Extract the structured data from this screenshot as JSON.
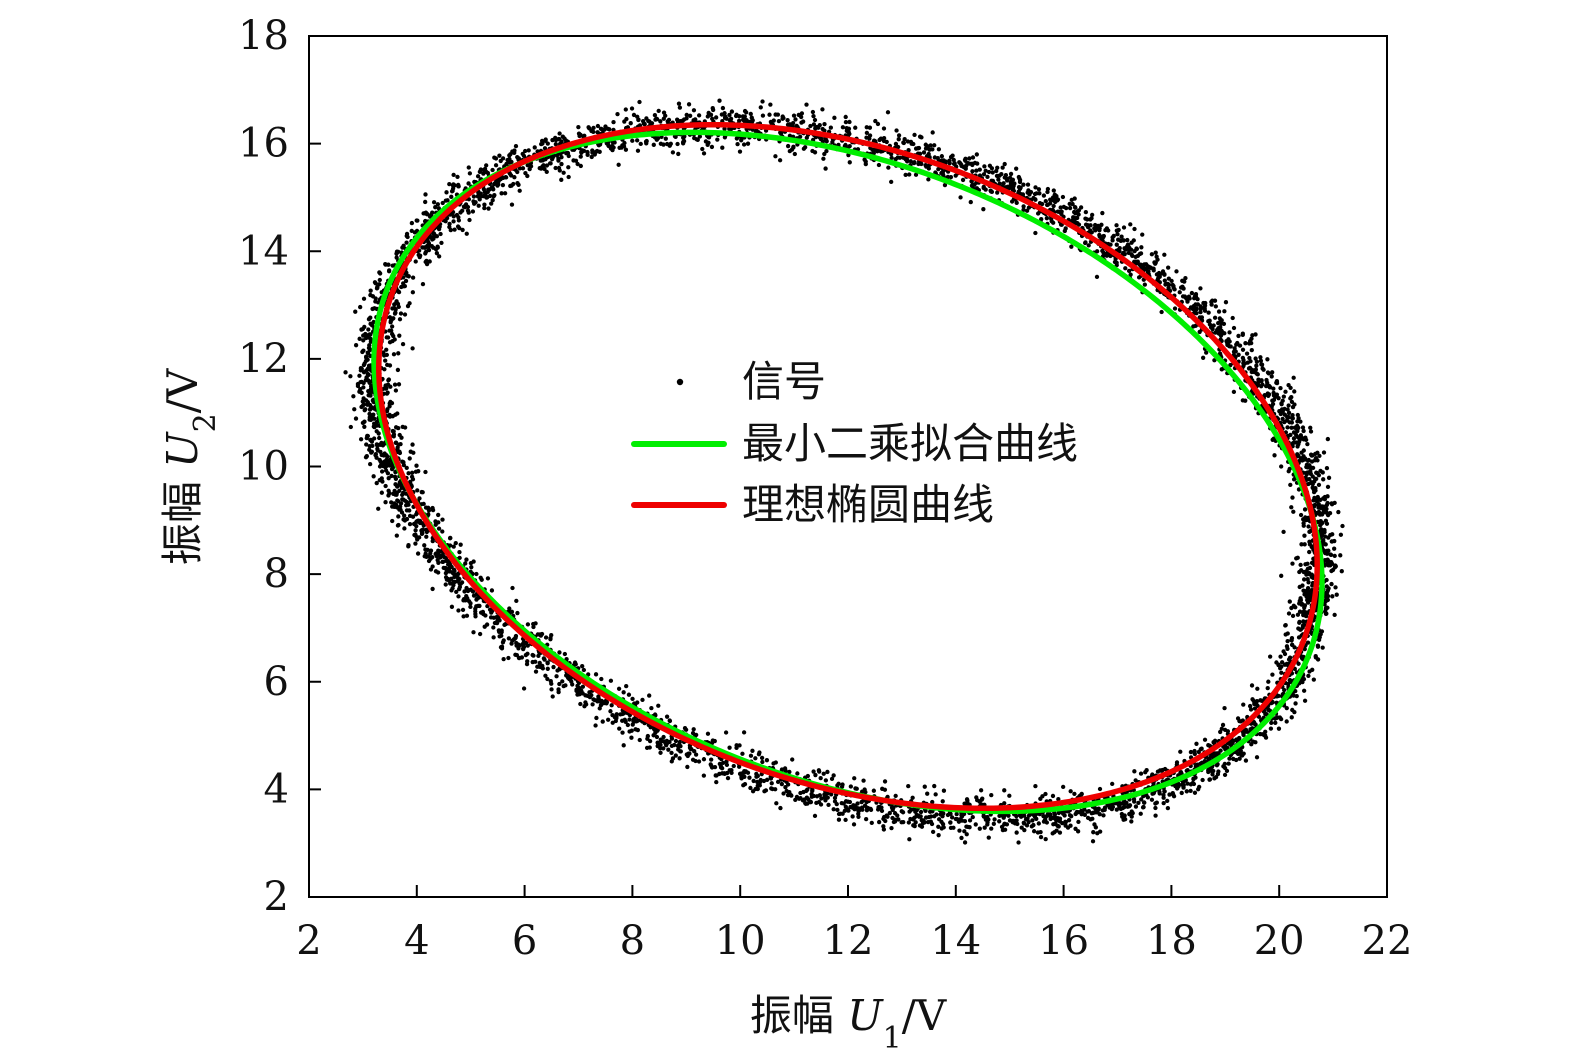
{
  "chart_data": {
    "type": "scatter",
    "title": "",
    "xlabel": "振幅 U1/V",
    "ylabel": "振幅 U2/V",
    "xlabel_parts": {
      "prefix": "振幅 ",
      "symbol": "U",
      "subscript": "1",
      "suffix": "/V"
    },
    "ylabel_parts": {
      "prefix": "振幅 ",
      "symbol": "U",
      "subscript": "2",
      "suffix": "/V"
    },
    "xlim": [
      2,
      22
    ],
    "ylim": [
      2,
      18
    ],
    "xticks": [
      2,
      4,
      6,
      8,
      10,
      12,
      14,
      16,
      18,
      20,
      22
    ],
    "yticks": [
      2,
      4,
      6,
      8,
      10,
      12,
      14,
      16,
      18
    ],
    "xtick_labels": [
      "2",
      "4",
      "6",
      "8",
      "10",
      "12",
      "14",
      "16",
      "18",
      "20",
      "22"
    ],
    "ytick_labels": [
      "2",
      "4",
      "6",
      "8",
      "10",
      "12",
      "14",
      "16",
      "18"
    ],
    "grid": false,
    "legend_position": "center",
    "series": [
      {
        "name": "信号",
        "type": "scatter",
        "color": "#000000",
        "description": "noisy elliptical signal points",
        "ellipse": {
          "cx": 12.0,
          "cy": 9.95,
          "rx": 9.0,
          "ry": 6.0,
          "angle_deg": -21.0
        },
        "noise": 0.35,
        "count": 5200
      },
      {
        "name": "最小二乘拟合曲线",
        "type": "line",
        "color": "#00ee00",
        "ellipse": {
          "cx": 12.0,
          "cy": 9.9,
          "rx": 9.2,
          "ry": 5.7,
          "angle_deg": -22.0
        }
      },
      {
        "name": "理想椭圆曲线",
        "type": "line",
        "color": "#ee0000",
        "ellipse": {
          "cx": 12.0,
          "cy": 10.0,
          "rx": 9.05,
          "ry": 5.85,
          "angle_deg": -21.0
        }
      }
    ]
  }
}
